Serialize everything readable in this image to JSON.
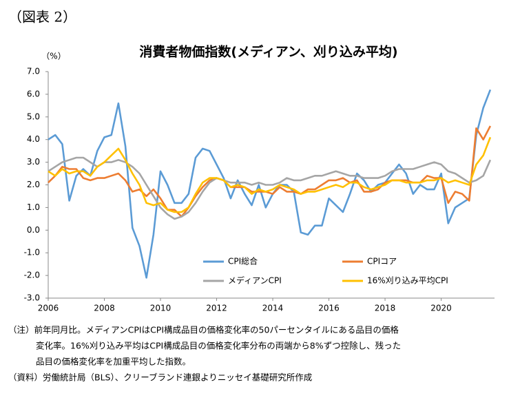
{
  "chart_data": {
    "type": "line",
    "figure_label": "（図表 2）",
    "title": "消費者物価指数(メディアン、刈り込み平均)",
    "y_unit": "（%）",
    "x": [
      2006,
      2006.25,
      2006.5,
      2006.75,
      2007,
      2007.25,
      2007.5,
      2007.75,
      2008,
      2008.25,
      2008.5,
      2008.75,
      2009,
      2009.25,
      2009.5,
      2009.75,
      2010,
      2010.25,
      2010.5,
      2010.75,
      2011,
      2011.25,
      2011.5,
      2011.75,
      2012,
      2012.25,
      2012.5,
      2012.75,
      2013,
      2013.25,
      2013.5,
      2013.75,
      2014,
      2014.25,
      2014.5,
      2014.75,
      2015,
      2015.25,
      2015.5,
      2015.75,
      2016,
      2016.25,
      2016.5,
      2016.75,
      2017,
      2017.25,
      2017.5,
      2017.75,
      2018,
      2018.25,
      2018.5,
      2018.75,
      2019,
      2019.25,
      2019.5,
      2019.75,
      2020,
      2020.25,
      2020.5,
      2020.75,
      2021,
      2021.25,
      2021.5,
      2021.75
    ],
    "series": [
      {
        "name": "CPI総合",
        "color": "#5b9bd5",
        "values": [
          4.0,
          4.2,
          3.8,
          1.3,
          2.4,
          2.7,
          2.4,
          3.5,
          4.1,
          4.2,
          5.6,
          3.7,
          0.1,
          -0.7,
          -2.1,
          -0.2,
          2.6,
          2.0,
          1.2,
          1.2,
          1.6,
          3.2,
          3.6,
          3.5,
          2.9,
          2.3,
          1.4,
          2.2,
          1.6,
          1.1,
          2.0,
          1.0,
          1.6,
          2.0,
          2.0,
          1.7,
          -0.1,
          -0.2,
          0.2,
          0.2,
          1.4,
          1.1,
          0.8,
          1.6,
          2.5,
          2.2,
          1.7,
          2.0,
          2.1,
          2.5,
          2.9,
          2.5,
          1.6,
          2.0,
          1.8,
          1.8,
          2.5,
          0.3,
          1.0,
          1.2,
          1.4,
          4.2,
          5.4,
          6.2
        ]
      },
      {
        "name": "CPIコア",
        "color": "#ed7d31",
        "values": [
          2.1,
          2.4,
          2.8,
          2.7,
          2.7,
          2.3,
          2.2,
          2.3,
          2.3,
          2.4,
          2.5,
          2.2,
          1.7,
          1.8,
          1.5,
          1.8,
          1.4,
          0.9,
          0.9,
          0.6,
          1.0,
          1.5,
          1.9,
          2.2,
          2.3,
          2.2,
          1.9,
          1.9,
          1.9,
          1.7,
          1.7,
          1.7,
          1.6,
          1.9,
          1.7,
          1.7,
          1.6,
          1.8,
          1.8,
          2.0,
          2.2,
          2.2,
          2.3,
          2.1,
          2.2,
          1.7,
          1.7,
          1.8,
          2.1,
          2.2,
          2.2,
          2.2,
          2.1,
          2.1,
          2.4,
          2.3,
          2.3,
          1.2,
          1.7,
          1.6,
          1.3,
          4.5,
          4.0,
          4.6
        ]
      },
      {
        "name": "メディアンCPI",
        "color": "#a5a5a5",
        "values": [
          2.6,
          2.8,
          3.0,
          3.1,
          3.2,
          3.2,
          3.0,
          2.8,
          3.0,
          3.0,
          3.1,
          3.0,
          2.8,
          2.5,
          2.0,
          1.5,
          1.0,
          0.7,
          0.5,
          0.6,
          0.8,
          1.2,
          1.7,
          2.1,
          2.3,
          2.2,
          2.1,
          2.1,
          2.1,
          2.0,
          2.1,
          2.0,
          2.0,
          2.1,
          2.3,
          2.2,
          2.2,
          2.3,
          2.4,
          2.4,
          2.5,
          2.6,
          2.5,
          2.4,
          2.4,
          2.3,
          2.3,
          2.3,
          2.4,
          2.6,
          2.7,
          2.7,
          2.7,
          2.8,
          2.9,
          3.0,
          2.9,
          2.6,
          2.5,
          2.3,
          2.1,
          2.2,
          2.4,
          3.1
        ]
      },
      {
        "name": "16%刈り込み平均CPI",
        "color": "#ffc000",
        "values": [
          2.6,
          2.4,
          2.7,
          2.5,
          2.6,
          2.6,
          2.4,
          2.8,
          3.0,
          3.3,
          3.6,
          3.1,
          2.5,
          2.0,
          1.2,
          1.1,
          1.2,
          0.9,
          0.8,
          0.8,
          1.0,
          1.6,
          2.1,
          2.3,
          2.3,
          2.2,
          1.9,
          2.0,
          1.9,
          1.6,
          1.8,
          1.7,
          1.8,
          2.0,
          1.9,
          1.8,
          1.6,
          1.7,
          1.7,
          1.8,
          1.9,
          2.0,
          1.9,
          2.1,
          2.1,
          1.9,
          1.8,
          1.9,
          2.0,
          2.2,
          2.2,
          2.1,
          2.1,
          2.1,
          2.2,
          2.2,
          2.3,
          2.1,
          2.2,
          2.1,
          2.0,
          2.9,
          3.3,
          4.1
        ]
      }
    ],
    "xlim": [
      2006,
      2021.9
    ],
    "xticks": [
      2006,
      2008,
      2010,
      2012,
      2014,
      2016,
      2018,
      2020
    ],
    "ylim": [
      -3,
      7
    ],
    "yticks": [
      {
        "value": 7,
        "label": "7.0"
      },
      {
        "value": 6,
        "label": "6.0"
      },
      {
        "value": 5,
        "label": "5.0"
      },
      {
        "value": 4,
        "label": "4.0"
      },
      {
        "value": 3,
        "label": "3.0"
      },
      {
        "value": 2,
        "label": "2.0"
      },
      {
        "value": 1,
        "label": "1.0"
      },
      {
        "value": 0,
        "label": "0.0"
      },
      {
        "value": -1,
        "label": "-1.0"
      },
      {
        "value": -2,
        "label": "-2.0"
      },
      {
        "value": -3,
        "label": "-3.0"
      }
    ],
    "grid": false,
    "notes": [
      "（注）前年同月比。メディアンCPIはCPI構成品目の価格変化率の50パーセンタイルにある品目の価格",
      "変化率。16%刈り込み平均はCPI構成品目の価格変化率分布の両端から8%ずつ控除し、残った",
      "品目の価格変化率を加重平均した指数。",
      "（資料）労働統計局（BLS）、クリーブランド連銀よりニッセイ基礎研究所作成"
    ]
  }
}
